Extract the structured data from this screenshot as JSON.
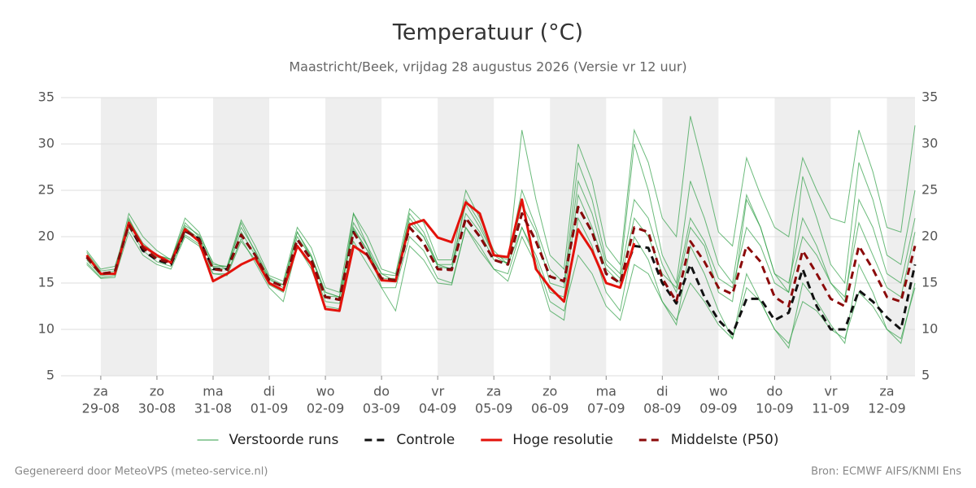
{
  "chart_data": {
    "type": "line",
    "title": "Temperatuur (°C)",
    "subtitle": "Maastricht/Beek, vrijdag 28 augustus 2026 (Versie vr 12 uur)",
    "footer_left": "Gegenereerd door MeteoVPS (meteo-service.nl)",
    "footer_right": "Bron: ECMWF AIFS/KNMI Ens",
    "xlim": [
      -17,
      348
    ],
    "xticks": [
      {
        "value": 0,
        "label": [
          "za",
          "29-08"
        ]
      },
      {
        "value": 24,
        "label": [
          "zo",
          "30-08"
        ]
      },
      {
        "value": 48,
        "label": [
          "ma",
          "31-08"
        ]
      },
      {
        "value": 72,
        "label": [
          "di",
          "01-09"
        ]
      },
      {
        "value": 96,
        "label": [
          "wo",
          "02-09"
        ]
      },
      {
        "value": 120,
        "label": [
          "do",
          "03-09"
        ]
      },
      {
        "value": 144,
        "label": [
          "vr",
          "04-09"
        ]
      },
      {
        "value": 168,
        "label": [
          "za",
          "05-09"
        ]
      },
      {
        "value": 192,
        "label": [
          "zo",
          "06-09"
        ]
      },
      {
        "value": 216,
        "label": [
          "ma",
          "07-09"
        ]
      },
      {
        "value": 240,
        "label": [
          "di",
          "08-09"
        ]
      },
      {
        "value": 264,
        "label": [
          "wo",
          "09-09"
        ]
      },
      {
        "value": 288,
        "label": [
          "do",
          "10-09"
        ]
      },
      {
        "value": 312,
        "label": [
          "vr",
          "11-09"
        ]
      },
      {
        "value": 336,
        "label": [
          "za",
          "12-09"
        ]
      }
    ],
    "ylim": [
      5,
      35
    ],
    "yticks": [
      5,
      10,
      15,
      20,
      25,
      30,
      35
    ],
    "right_axis": true,
    "grid": true,
    "alternate_day_shading": true,
    "legend": "bottom",
    "x": [
      -6,
      0,
      6,
      12,
      18,
      24,
      30,
      36,
      42,
      48,
      54,
      60,
      66,
      72,
      78,
      84,
      90,
      96,
      102,
      108,
      114,
      120,
      126,
      132,
      138,
      144,
      150,
      156,
      162,
      168,
      174,
      180,
      186,
      192,
      198,
      204,
      210,
      216,
      222,
      228,
      234,
      240,
      246,
      252,
      258,
      264,
      270,
      276,
      282,
      288,
      294,
      300,
      306,
      312,
      318,
      324,
      330,
      336,
      342,
      348
    ],
    "ensemble": {
      "name": "Verstoorde runs",
      "color": "#2e9e45",
      "members": [
        [
          17.5,
          15.8,
          16,
          22,
          19,
          18,
          17.5,
          21.5,
          20,
          16.8,
          16.8,
          21,
          18.5,
          15.6,
          14.8,
          20.5,
          18,
          14,
          13.5,
          21,
          18.5,
          16,
          15.8,
          22,
          20,
          17,
          17,
          23.5,
          21,
          18,
          17.5,
          25,
          21,
          16.5,
          15,
          28,
          24,
          17.5,
          16,
          30,
          25,
          18,
          15,
          26,
          22,
          17,
          15,
          24.5,
          21,
          16,
          14,
          26.5,
          22,
          17,
          15,
          28,
          24,
          18,
          17,
          25
        ],
        [
          17,
          15.5,
          15.6,
          20.5,
          18,
          17,
          16.5,
          20,
          19,
          16,
          15.8,
          19.5,
          17.5,
          14.8,
          14,
          19,
          17,
          13,
          12.8,
          19.5,
          17,
          14.5,
          14.5,
          20,
          18.5,
          15.5,
          15,
          21,
          19,
          16.5,
          16,
          21,
          17.5,
          13,
          12,
          18,
          16,
          12.5,
          11,
          17,
          16,
          13,
          11,
          15,
          13,
          10.5,
          9,
          14.5,
          13,
          10,
          8.5,
          13,
          12,
          10,
          9,
          14,
          12.5,
          10,
          9,
          14.5
        ],
        [
          18.3,
          16.3,
          16.5,
          21.8,
          19.3,
          18,
          17.6,
          21,
          19.8,
          16.7,
          16.5,
          21.5,
          18.3,
          15.3,
          14.8,
          20.5,
          17.8,
          13.6,
          13.5,
          21.5,
          19,
          16,
          15.2,
          22.5,
          20.5,
          17,
          16.5,
          24,
          21.5,
          18,
          17,
          21,
          18,
          14,
          13.5,
          24.5,
          21,
          16.5,
          15,
          22,
          20,
          16,
          14.5,
          22,
          19.5,
          15.5,
          14.5,
          21,
          19,
          15,
          14,
          20,
          18,
          15,
          13.5,
          21.5,
          18,
          14.5,
          13.5,
          20.5
        ],
        [
          18,
          16,
          16.3,
          22.5,
          20,
          18.5,
          17.5,
          22,
          20.5,
          17,
          16.8,
          21.8,
          19,
          15.8,
          15.2,
          21,
          18.8,
          14.5,
          14,
          22.5,
          20,
          16.5,
          16,
          23,
          21.5,
          17.5,
          17.5,
          25,
          22,
          18.5,
          17,
          31.5,
          24,
          18,
          16.5,
          30,
          26,
          19,
          17,
          31.5,
          28,
          22,
          20,
          33,
          27,
          20.5,
          19,
          28.5,
          24.5,
          21,
          20,
          28.5,
          25,
          22,
          21.5,
          31.5,
          27,
          21,
          20.5,
          32
        ],
        [
          17.2,
          15.6,
          15.8,
          21,
          18.5,
          17.3,
          16.8,
          20.2,
          19.2,
          16,
          16,
          19.8,
          17.2,
          14.5,
          13,
          19,
          16.5,
          12.5,
          12.2,
          22.5,
          19,
          14.5,
          12,
          19,
          17.5,
          15,
          14.8,
          21,
          18.5,
          16.5,
          15.2,
          20,
          17,
          12,
          11,
          22,
          19,
          14,
          12,
          20,
          17.5,
          13,
          10.5,
          19,
          16,
          12,
          9,
          16,
          13,
          10,
          8,
          15,
          13,
          10.5,
          8.5,
          17,
          14,
          10,
          8.5,
          15
        ],
        [
          18.5,
          16.5,
          16.8,
          21.5,
          19,
          17.8,
          17.3,
          21.2,
          20.2,
          17.2,
          16.5,
          20.5,
          18,
          15.5,
          14.5,
          20,
          17.8,
          14,
          13.5,
          20.8,
          18.5,
          15.5,
          15.5,
          21.5,
          20,
          16.8,
          16.5,
          22.5,
          20.5,
          17.5,
          17.2,
          23.5,
          20.5,
          15,
          14.5,
          26,
          22.5,
          17,
          15.5,
          24,
          22,
          17,
          14,
          21,
          19,
          14,
          13,
          24,
          21,
          16,
          15,
          22,
          19,
          15,
          13,
          24,
          21,
          16,
          15,
          22
        ]
      ]
    },
    "series": [
      {
        "name": "Controle",
        "color": "#111111",
        "linestyle": "dashed",
        "values": [
          17.8,
          16,
          16.2,
          21.3,
          18.5,
          17.5,
          17,
          20.6,
          19.8,
          16.5,
          16.5,
          20.2,
          18,
          15.3,
          14.6,
          19.7,
          17.5,
          13.5,
          13.2,
          20.5,
          18,
          15.5,
          15.3,
          21,
          19.3,
          16.5,
          16.5,
          22,
          20,
          17.5,
          17,
          22.5,
          19.5,
          15.7,
          15.2,
          23.2,
          20.5,
          16,
          15,
          19,
          18.8,
          15,
          12.8,
          17,
          13.5,
          11,
          9.5,
          13.3,
          13.3,
          11,
          11.8,
          16.5,
          12.5,
          10,
          10,
          14.2,
          13,
          11.3,
          10,
          17
        ]
      },
      {
        "name": "Hoge resolutie",
        "color": "#e3120b",
        "linestyle": "solid",
        "values": [
          18,
          16,
          16,
          21.5,
          19,
          18,
          17.2,
          20.8,
          19.5,
          15.2,
          16,
          17,
          17.7,
          15,
          14.2,
          19,
          17,
          12.2,
          12,
          19,
          18,
          15.3,
          15.2,
          21.3,
          21.8,
          19.9,
          19.4,
          23.7,
          22.5,
          18,
          17.8,
          24,
          16.5,
          14.5,
          13,
          20.8,
          18.5,
          15,
          14.5,
          19.3,
          null,
          null,
          null,
          null,
          null,
          null,
          null,
          null,
          null,
          null,
          null,
          null,
          null,
          null,
          null,
          null,
          null,
          null,
          null,
          null
        ]
      },
      {
        "name": "Middelste (P50)",
        "color": "#8b0a0a",
        "linestyle": "dashed",
        "values": [
          17.8,
          16,
          16.2,
          21.3,
          18.8,
          17.6,
          17.2,
          20.7,
          19.7,
          16.5,
          16.3,
          20.2,
          18,
          15.3,
          14.6,
          19.7,
          17.5,
          13.5,
          13.2,
          20.5,
          18,
          15.5,
          15.3,
          21,
          19.3,
          16.5,
          16.4,
          22,
          20,
          17.5,
          17,
          22.5,
          19.5,
          15.7,
          15.2,
          23.2,
          20.5,
          16,
          15,
          21,
          20.5,
          15.5,
          13,
          19.5,
          17.3,
          14.5,
          13.8,
          19,
          17.3,
          13.5,
          12.5,
          18.5,
          16,
          13.3,
          12.5,
          19,
          16.5,
          13.5,
          13,
          19
        ]
      }
    ]
  }
}
